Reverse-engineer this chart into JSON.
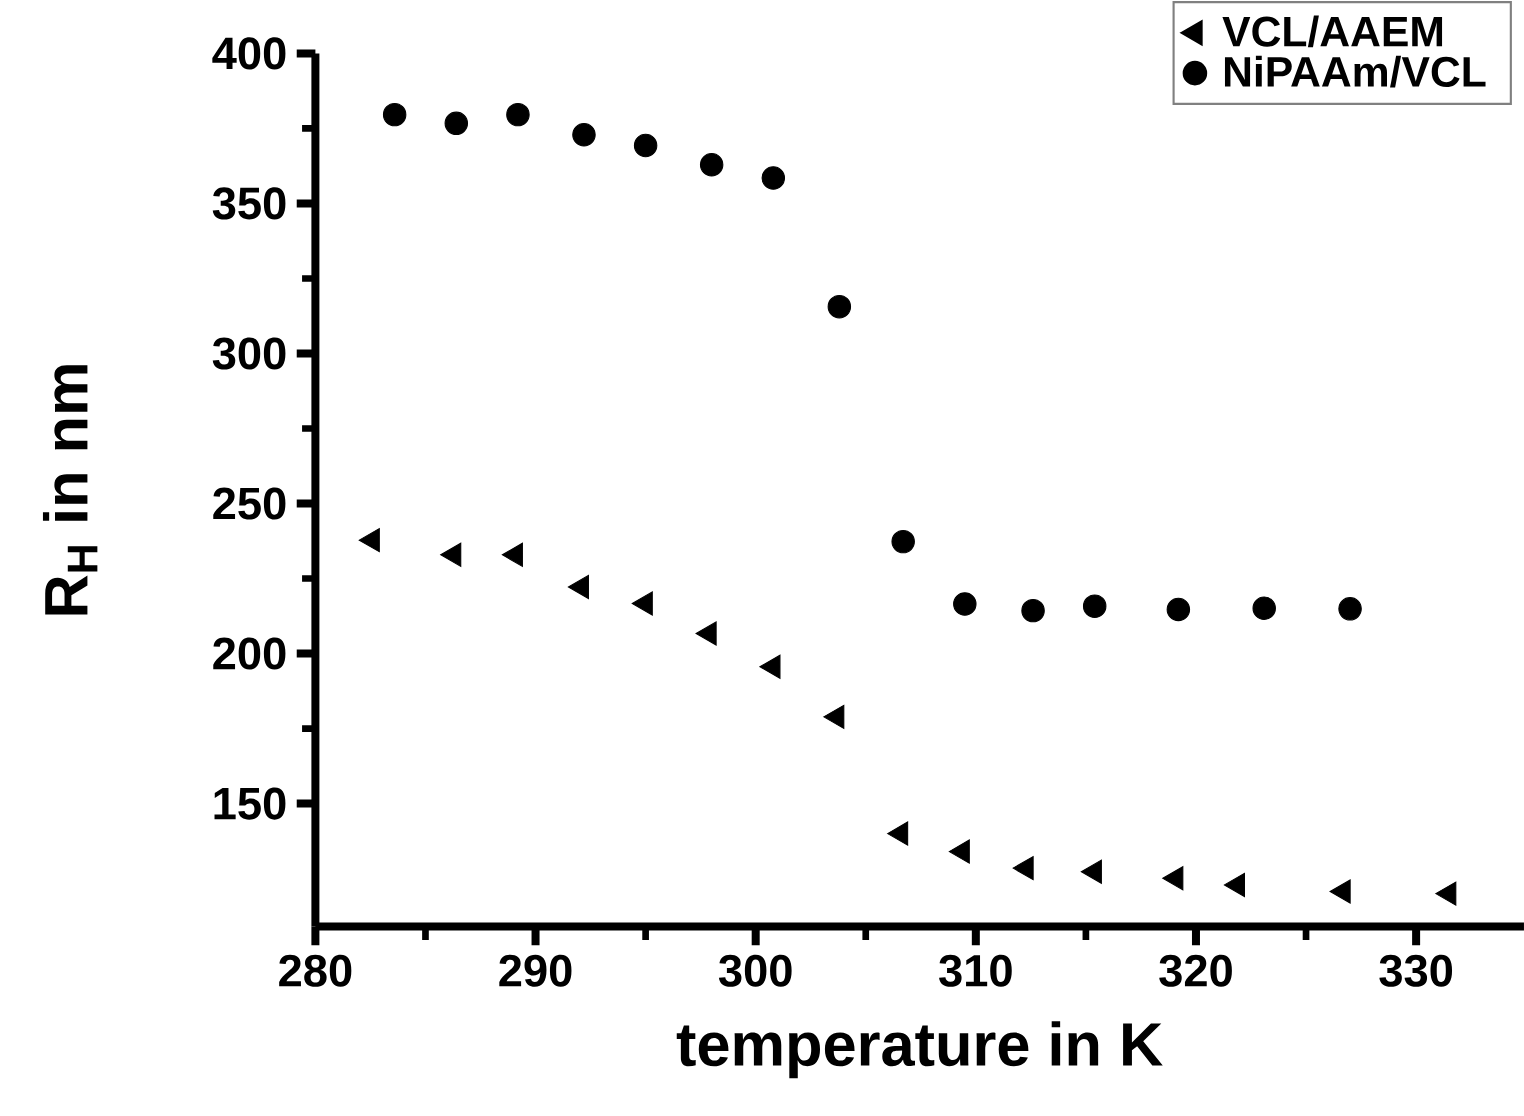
{
  "chart_data": {
    "type": "scatter",
    "xlabel": "temperature in K",
    "ylabel": "R$_{H}$ in nm",
    "xlim": [
      280,
      334.9
    ],
    "ylim": [
      109,
      400
    ],
    "xticks": [
      280,
      290,
      300,
      310,
      320,
      330
    ],
    "yticks": [
      150,
      200,
      250,
      300,
      350,
      400
    ],
    "legend": "top right",
    "grid": false,
    "series": [
      {
        "name": "VCL/AAEM",
        "color": "#000000",
        "marker": "triangle-left",
        "x": [
          282.6,
          286.3,
          289.1,
          292.1,
          295.0,
          297.9,
          300.8,
          303.7,
          306.6,
          309.4,
          312.3,
          315.4,
          319.1,
          321.9,
          326.7,
          331.5
        ],
        "values": [
          237.8,
          232.9,
          232.9,
          222.2,
          216.7,
          206.7,
          195.6,
          178.9,
          140,
          134,
          128.5,
          127.3,
          125.1,
          122.9,
          120.7,
          120
        ]
      },
      {
        "name": "NiPAAm/VCL",
        "color": "#000000",
        "marker": "circle",
        "x": [
          283.6,
          286.4,
          289.2,
          292.2,
          295.0,
          298.0,
          300.8,
          303.8,
          306.7,
          309.5,
          312.6,
          315.4,
          319.2,
          323.1,
          327.0
        ],
        "values": [
          379.6,
          376.7,
          379.6,
          372.9,
          369.3,
          362.9,
          358.5,
          315.6,
          237.3,
          216.5,
          214.3,
          215.8,
          214.7,
          215.1,
          214.9
        ]
      }
    ]
  }
}
